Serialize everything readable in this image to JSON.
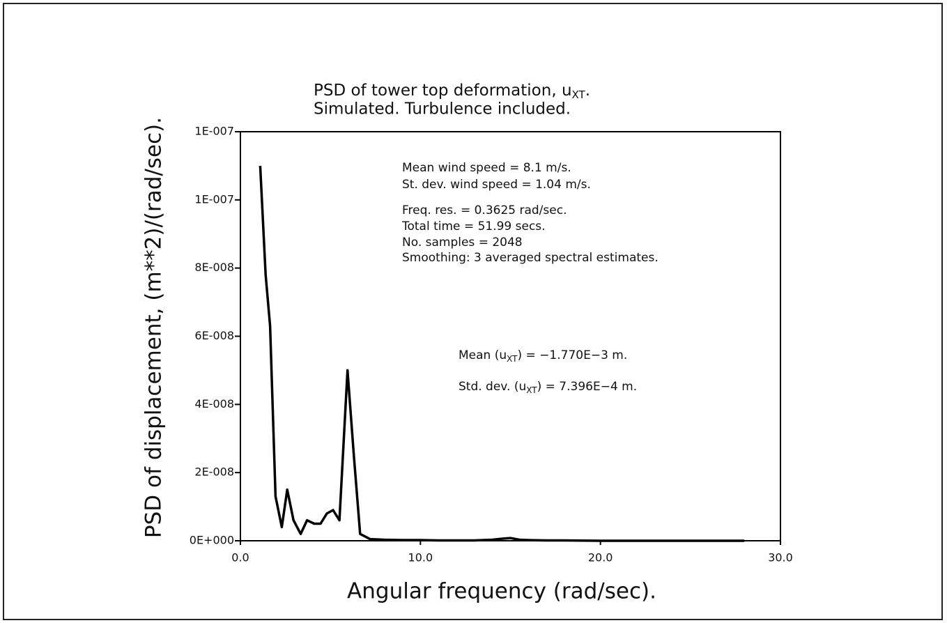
{
  "chart_data": {
    "type": "line",
    "title": [
      "PSD of tower top deformation, u",
      "XT",
      "."
    ],
    "subtitle": "Simulated. Turbulence included.",
    "x_label": "Angular frequency (rad/sec).",
    "y_label": "PSD of displacement, (m**2)/(rad/sec).",
    "x": [
      1.1,
      1.4,
      1.65,
      1.95,
      2.3,
      2.6,
      2.95,
      3.35,
      3.7,
      4.1,
      4.45,
      4.8,
      5.15,
      5.5,
      5.95,
      6.3,
      6.65,
      7.2,
      8,
      9,
      10,
      11,
      12,
      13,
      14,
      14.5,
      15,
      15.5,
      16,
      17,
      18,
      20,
      22,
      25,
      28
    ],
    "series": [
      {
        "color": "#000000",
        "values": [
          1.1e-07,
          7.8e-08,
          6.3e-08,
          1.3e-08,
          4e-09,
          1.5e-08,
          6e-09,
          2e-09,
          6e-09,
          5e-09,
          5e-09,
          8e-09,
          9e-09,
          6e-09,
          5e-08,
          2.5e-08,
          2e-09,
          5e-10,
          3e-10,
          2e-10,
          2e-10,
          1e-10,
          1e-10,
          1e-10,
          3e-10,
          6e-10,
          8e-10,
          3e-10,
          2e-10,
          1e-10,
          1e-10,
          0,
          0,
          0,
          0
        ]
      }
    ],
    "xlim": [
      0,
      30
    ],
    "ylim": [
      0,
      1.2e-07
    ],
    "xticks": [
      {
        "value": 0,
        "label": "0.0"
      },
      {
        "value": 10,
        "label": "10.0"
      },
      {
        "value": 20,
        "label": "20.0"
      },
      {
        "value": 30,
        "label": "30.0"
      }
    ],
    "yticks": [
      {
        "value": 0,
        "label": "0E+000"
      },
      {
        "value": 2e-08,
        "label": "2E-008"
      },
      {
        "value": 4e-08,
        "label": "4E-008"
      },
      {
        "value": 6e-08,
        "label": "6E-008"
      },
      {
        "value": 8e-08,
        "label": "8E-008"
      },
      {
        "value": 1e-07,
        "label": "1E-007"
      },
      {
        "value": 1.2e-07,
        "label": "1E-007"
      }
    ],
    "annotations": [
      [
        "Mean wind speed = 8.1 m/s."
      ],
      [
        "St. dev. wind speed = 1.04 m/s."
      ],
      [
        "Freq. res. = 0.3625 rad/sec."
      ],
      [
        "Total time = 51.99 secs."
      ],
      [
        "No. samples = 2048"
      ],
      [
        "Smoothing: 3 averaged spectral estimates."
      ],
      [
        "Mean (u",
        "XT",
        ") = −1.770E−3 m."
      ],
      [
        "Std. dev. (u",
        "XT",
        ") = 7.396E−4 m."
      ]
    ]
  }
}
